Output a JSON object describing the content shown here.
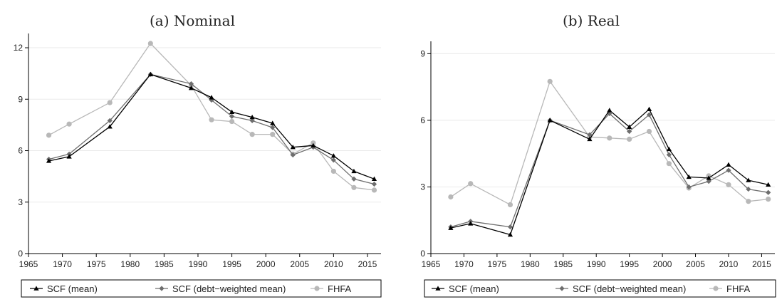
{
  "chart_data": [
    {
      "type": "line",
      "title": "(a) Nominal",
      "xlabel": "",
      "ylabel": "",
      "xlim": [
        1965,
        2017
      ],
      "ylim": [
        0,
        12.5
      ],
      "xticks": [
        1965,
        1970,
        1975,
        1980,
        1985,
        1990,
        1995,
        2000,
        2005,
        2010,
        2015
      ],
      "yticks": [
        0,
        3,
        6,
        9,
        12
      ],
      "grid": true,
      "legend": "bottom",
      "series": [
        {
          "name": "SCF (mean)",
          "color": "#000000",
          "marker": "triangle",
          "x": [
            1968,
            1971,
            1977,
            1983,
            1989,
            1992,
            1995,
            1998,
            2001,
            2004,
            2007,
            2010,
            2013,
            2016
          ],
          "y": [
            5.4,
            5.65,
            7.4,
            10.45,
            9.65,
            9.1,
            8.25,
            7.95,
            7.6,
            6.2,
            6.3,
            5.7,
            4.8,
            4.35
          ]
        },
        {
          "name": "SCF (debt−weighted mean)",
          "color": "#6e6e6e",
          "marker": "diamond",
          "x": [
            1968,
            1971,
            1977,
            1983,
            1989,
            1992,
            1995,
            1998,
            2001,
            2004,
            2007,
            2010,
            2013,
            2016
          ],
          "y": [
            5.5,
            5.8,
            7.75,
            10.45,
            9.9,
            8.95,
            8.0,
            7.75,
            7.35,
            5.75,
            6.2,
            5.45,
            4.35,
            4.05
          ]
        },
        {
          "name": "FHFA",
          "color": "#b8b8b8",
          "marker": "circle",
          "x": [
            1968,
            1971,
            1977,
            1983,
            1989,
            1992,
            1995,
            1998,
            2001,
            2004,
            2007,
            2010,
            2013,
            2016
          ],
          "y": [
            6.9,
            7.55,
            8.8,
            12.25,
            9.8,
            7.8,
            7.7,
            6.95,
            6.95,
            5.8,
            6.45,
            4.8,
            3.85,
            3.7
          ]
        }
      ]
    },
    {
      "type": "line",
      "title": "(b) Real",
      "xlabel": "",
      "ylabel": "",
      "xlim": [
        1965,
        2017
      ],
      "ylim": [
        0,
        9.3
      ],
      "xticks": [
        1965,
        1970,
        1975,
        1980,
        1985,
        1990,
        1995,
        2000,
        2005,
        2010,
        2015
      ],
      "yticks": [
        0,
        3,
        6,
        9
      ],
      "grid": true,
      "legend": "bottom",
      "series": [
        {
          "name": "SCF (mean)",
          "color": "#000000",
          "marker": "triangle",
          "x": [
            1968,
            1971,
            1977,
            1983,
            1989,
            1992,
            1995,
            1998,
            2001,
            2004,
            2007,
            2010,
            2013,
            2016
          ],
          "y": [
            1.15,
            1.35,
            0.85,
            6.0,
            5.15,
            6.45,
            5.7,
            6.5,
            4.7,
            3.45,
            3.4,
            4.0,
            3.3,
            3.1
          ]
        },
        {
          "name": "SCF (debt−weighted mean)",
          "color": "#6e6e6e",
          "marker": "diamond",
          "x": [
            1968,
            1971,
            1977,
            1983,
            1989,
            1992,
            1995,
            1998,
            2001,
            2004,
            2007,
            2010,
            2013,
            2016
          ],
          "y": [
            1.2,
            1.45,
            1.2,
            6.0,
            5.35,
            6.3,
            5.5,
            6.25,
            4.45,
            3.0,
            3.25,
            3.75,
            2.9,
            2.75
          ]
        },
        {
          "name": "FHFA",
          "color": "#b8b8b8",
          "marker": "circle",
          "x": [
            1968,
            1971,
            1977,
            1983,
            1989,
            1992,
            1995,
            1998,
            2001,
            2004,
            2007,
            2010,
            2013,
            2016
          ],
          "y": [
            2.55,
            3.15,
            2.2,
            7.75,
            5.25,
            5.2,
            5.15,
            5.5,
            4.05,
            2.95,
            3.5,
            3.1,
            2.35,
            2.45
          ]
        }
      ]
    }
  ]
}
